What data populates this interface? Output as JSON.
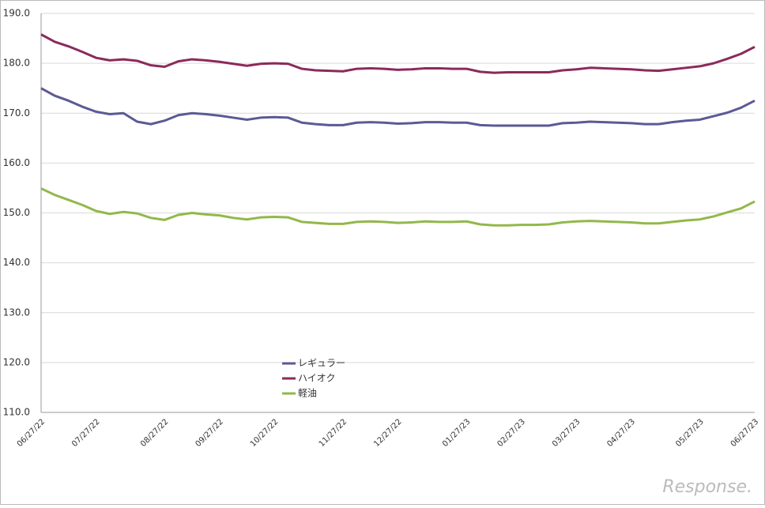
{
  "chart_data": {
    "type": "line",
    "categories": [
      "06/27/22",
      null,
      null,
      null,
      "07/27/22",
      null,
      null,
      null,
      null,
      "08/27/22",
      null,
      null,
      null,
      "09/27/22",
      null,
      null,
      null,
      "10/27/22",
      null,
      null,
      null,
      null,
      "11/27/22",
      null,
      null,
      null,
      "12/27/22",
      null,
      null,
      null,
      null,
      "01/27/23",
      null,
      null,
      null,
      "02/27/23",
      null,
      null,
      null,
      "03/27/23",
      null,
      null,
      null,
      "04/27/23",
      null,
      null,
      null,
      null,
      "05/27/23",
      null,
      null,
      null,
      "06/27/23"
    ],
    "series": [
      {
        "name": "レギュラー",
        "color": "#5b5a96",
        "values": [
          175.0,
          173.5,
          172.5,
          171.3,
          170.3,
          169.8,
          170.0,
          168.3,
          167.8,
          168.5,
          169.6,
          170.0,
          169.8,
          169.5,
          169.1,
          168.7,
          169.1,
          169.2,
          169.1,
          168.1,
          167.8,
          167.6,
          167.6,
          168.1,
          168.2,
          168.1,
          167.9,
          168.0,
          168.2,
          168.2,
          168.1,
          168.1,
          167.6,
          167.5,
          167.5,
          167.5,
          167.5,
          167.5,
          168.0,
          168.1,
          168.3,
          168.2,
          168.1,
          168.0,
          167.8,
          167.8,
          168.2,
          168.5,
          168.7,
          169.4,
          170.1,
          171.1,
          172.5
        ]
      },
      {
        "name": "ハイオク",
        "color": "#8b2a5a",
        "values": [
          185.8,
          184.3,
          183.4,
          182.3,
          181.1,
          180.6,
          180.8,
          180.5,
          179.6,
          179.3,
          180.4,
          180.8,
          180.6,
          180.3,
          179.9,
          179.5,
          179.9,
          180.0,
          179.9,
          178.9,
          178.6,
          178.5,
          178.4,
          178.9,
          179.0,
          178.9,
          178.7,
          178.8,
          179.0,
          179.0,
          178.9,
          178.9,
          178.3,
          178.1,
          178.2,
          178.2,
          178.2,
          178.2,
          178.6,
          178.8,
          179.1,
          179.0,
          178.9,
          178.8,
          178.6,
          178.5,
          178.8,
          179.1,
          179.4,
          180.0,
          180.9,
          181.9,
          183.3
        ]
      },
      {
        "name": "軽油",
        "color": "#92b84a",
        "values": [
          154.9,
          153.6,
          152.6,
          151.6,
          150.4,
          149.8,
          150.2,
          149.9,
          149.0,
          148.6,
          149.6,
          150.0,
          149.7,
          149.5,
          149.0,
          148.7,
          149.1,
          149.2,
          149.1,
          148.2,
          148.0,
          147.8,
          147.8,
          148.2,
          148.3,
          148.2,
          148.0,
          148.1,
          148.3,
          148.2,
          148.2,
          148.3,
          147.7,
          147.5,
          147.5,
          147.6,
          147.6,
          147.7,
          148.1,
          148.3,
          148.4,
          148.3,
          148.2,
          148.1,
          147.9,
          147.9,
          148.2,
          148.5,
          148.7,
          149.3,
          150.1,
          150.9,
          152.3
        ]
      }
    ],
    "ylim": [
      110,
      190
    ],
    "yticks": [
      {
        "value": 110,
        "label": "110.0"
      },
      {
        "value": 120,
        "label": "120.0"
      },
      {
        "value": 130,
        "label": "130.0"
      },
      {
        "value": 140,
        "label": "140.0"
      },
      {
        "value": 150,
        "label": "150.0"
      },
      {
        "value": 160,
        "label": "160.0"
      },
      {
        "value": 170,
        "label": "170.0"
      },
      {
        "value": 180,
        "label": "180.0"
      },
      {
        "value": 190,
        "label": "190.0"
      }
    ],
    "grid": true,
    "legend": "center-bottom",
    "watermark": "Response."
  }
}
